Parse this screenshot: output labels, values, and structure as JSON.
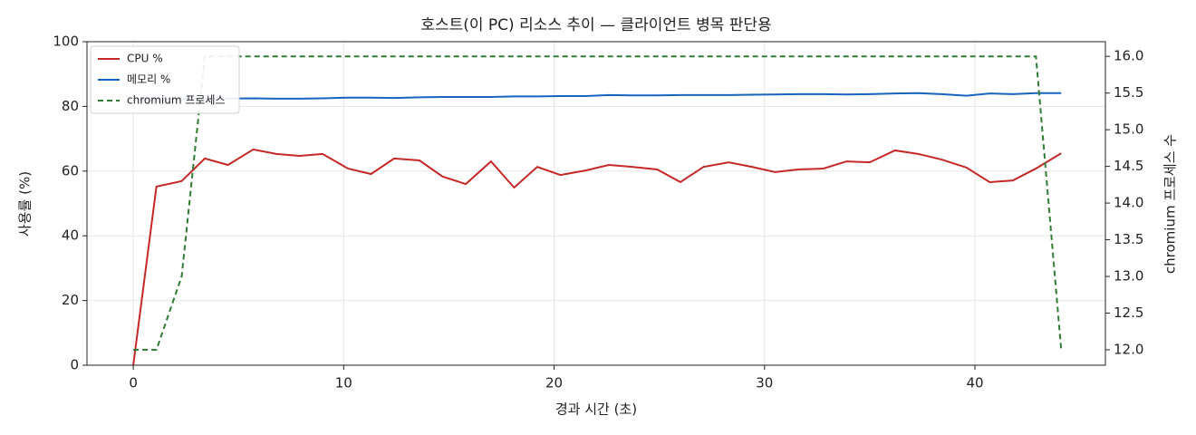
{
  "chart_data": {
    "type": "line",
    "title": "호스트(이 PC) 리소스 추이 — 클라이언트 병목 판단용",
    "xlabel": "경과 시간 (초)",
    "ylabel": "사용률 (%)",
    "y2label": "chromium 프로세스 수",
    "x": [
      0,
      1.1,
      2.3,
      3.4,
      4.5,
      5.7,
      6.8,
      7.9,
      9.0,
      10.2,
      11.3,
      12.4,
      13.6,
      14.7,
      15.8,
      17.0,
      18.1,
      19.2,
      20.3,
      21.5,
      22.6,
      23.7,
      24.9,
      26.0,
      27.1,
      28.3,
      29.4,
      30.5,
      31.6,
      32.8,
      33.9,
      35.0,
      36.2,
      37.3,
      38.4,
      39.6,
      40.7,
      41.8,
      42.9,
      44.1
    ],
    "series": [
      {
        "name": "CPU %",
        "color": "#c62828",
        "dash": false,
        "values": [
          0,
          55.2,
          56.9,
          63.9,
          61.9,
          66.7,
          65.3,
          64.7,
          65.3,
          60.8,
          59.1,
          63.9,
          63.3,
          58.3,
          56.0,
          63.0,
          54.9,
          61.3,
          58.8,
          60.2,
          61.9,
          61.3,
          60.5,
          56.6,
          61.3,
          62.7,
          61.3,
          59.7,
          60.5,
          60.8,
          63.0,
          62.7,
          66.4,
          65.3,
          63.6,
          61.1,
          56.6,
          57.1,
          60.8,
          65.5
        ]
      },
      {
        "name": "메모리 %",
        "color": "#1565c0",
        "dash": false,
        "values": [
          82.0,
          82.2,
          82.3,
          82.4,
          82.4,
          82.5,
          82.4,
          82.4,
          82.5,
          82.7,
          82.7,
          82.6,
          82.8,
          82.9,
          82.9,
          82.9,
          83.1,
          83.1,
          83.2,
          83.2,
          83.5,
          83.4,
          83.4,
          83.5,
          83.5,
          83.5,
          83.6,
          83.7,
          83.8,
          83.8,
          83.7,
          83.8,
          84.0,
          84.1,
          83.8,
          83.3,
          84.0,
          83.8,
          84.1,
          84.1
        ]
      },
      {
        "name": "chromium 프로세스",
        "color": "#2e7d32",
        "dash": true,
        "axis": "y2",
        "values": [
          12,
          12,
          13,
          16,
          16,
          16,
          16,
          16,
          16,
          16,
          16,
          16,
          16,
          16,
          16,
          16,
          16,
          16,
          16,
          16,
          16,
          16,
          16,
          16,
          16,
          16,
          16,
          16,
          16,
          16,
          16,
          16,
          16,
          16,
          16,
          16,
          16,
          16,
          16,
          12
        ]
      }
    ],
    "xlim": [
      -2.2,
      46.2
    ],
    "xticks": [
      0,
      10,
      20,
      30,
      40
    ],
    "ylim": [
      0,
      100
    ],
    "yticks": [
      0,
      20,
      40,
      60,
      80,
      100
    ],
    "y2lim": [
      11.79,
      16.2
    ],
    "y2ticks": [
      {
        "value": 12,
        "label": "12.0"
      },
      12.5,
      {
        "value": 13,
        "label": "13.0"
      },
      13.5,
      {
        "value": 14,
        "label": "14.0"
      },
      14.5,
      {
        "value": 15,
        "label": "15.0"
      },
      15.5,
      {
        "value": 16,
        "label": "16.0"
      }
    ],
    "grid": true,
    "legend": "upper left"
  }
}
